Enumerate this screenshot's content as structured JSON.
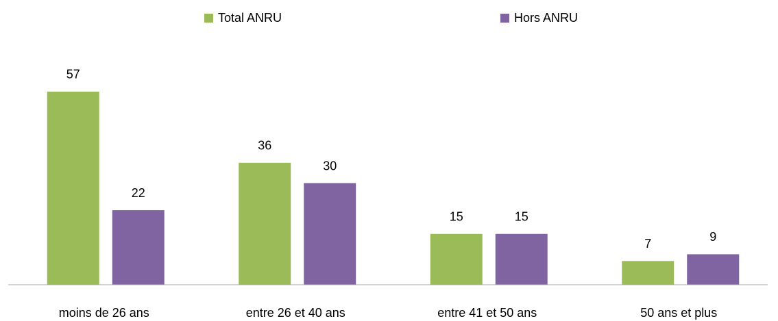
{
  "chart_data": {
    "type": "bar",
    "categories": [
      "moins de 26 ans",
      "entre 26 et 40 ans",
      "entre 41 et 50 ans",
      "50 ans et plus"
    ],
    "series": [
      {
        "name": "Total ANRU",
        "color": "#9bbb59",
        "values": [
          57,
          36,
          15,
          7
        ]
      },
      {
        "name": "Hors ANRU",
        "color": "#8064a2",
        "values": [
          22,
          30,
          15,
          9
        ]
      }
    ],
    "ylim": [
      0,
      60
    ]
  }
}
